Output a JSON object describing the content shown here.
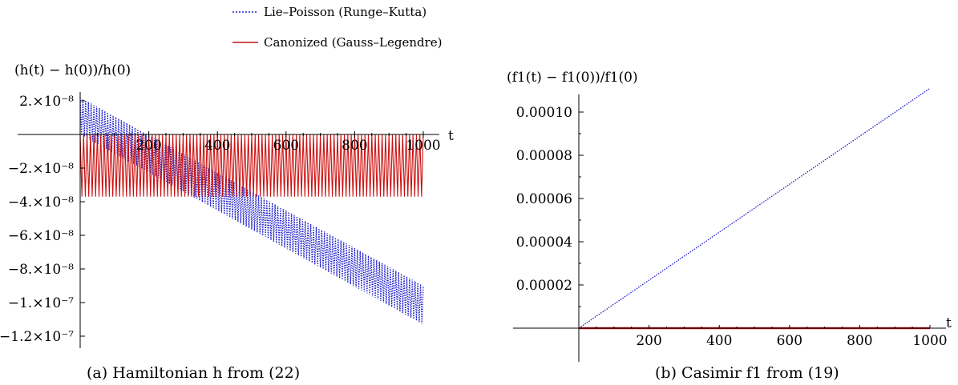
{
  "legend": [
    {
      "label": "Lie–Poisson (Runge–Kutta)",
      "color": "#1f1fcc",
      "style": "dotted"
    },
    {
      "label": "Canonized (Gauss–Legendre)",
      "color": "#cc1111",
      "style": "solid"
    }
  ],
  "chart_data": [
    {
      "type": "line",
      "caption": "(a) Hamiltonian h from (22)",
      "ylabel": "(h(t) − h(0))/h(0)",
      "xlabel": "t",
      "xlim": [
        0,
        1000
      ],
      "ylim": [
        -1.2e-07,
        2.5e-08
      ],
      "x_ticks": [
        200,
        400,
        600,
        800,
        1000
      ],
      "x_tick_labels": [
        "200",
        "400",
        "600",
        "800",
        "1000"
      ],
      "y_ticks": [
        2e-08,
        -2e-08,
        -4e-08,
        -6e-08,
        -8e-08,
        -1e-07,
        -1.2e-07
      ],
      "y_tick_labels": [
        "2.×10⁻⁸",
        "−2.×10⁻⁸",
        "−4.×10⁻⁸",
        "−6.×10⁻⁸",
        "−8.×10⁻⁸",
        "−1.×10⁻⁷",
        "−1.2×10⁻⁷"
      ],
      "series": [
        {
          "name": "Lie–Poisson (Runge–Kutta)",
          "color": "#1f1fcc",
          "style": "dotted",
          "x": [
            0,
            1000
          ],
          "upper": [
            2.2e-08,
            -9e-08
          ],
          "lower": [
            0.0,
            -1.13e-07
          ],
          "oscillation_period": 8
        },
        {
          "name": "Canonized (Gauss–Legendre)",
          "color": "#cc1111",
          "style": "solid",
          "x": [
            0,
            1000
          ],
          "upper": [
            0.0,
            0.0
          ],
          "lower": [
            -3.7e-08,
            -3.7e-08
          ],
          "oscillation_period": 10
        }
      ]
    },
    {
      "type": "line",
      "caption": "(b) Casimir f1 from (19)",
      "ylabel": "(f1(t) − f1(0))/f1(0)",
      "xlabel": "t",
      "xlim": [
        0,
        1000
      ],
      "ylim": [
        0,
        0.000112
      ],
      "x_ticks": [
        200,
        400,
        600,
        800,
        1000
      ],
      "x_tick_labels": [
        "200",
        "400",
        "600",
        "800",
        "1000"
      ],
      "y_ticks": [
        2e-05,
        4e-05,
        6e-05,
        8e-05,
        0.0001
      ],
      "y_tick_labels": [
        "0.00002",
        "0.00004",
        "0.00006",
        "0.00008",
        "0.00010"
      ],
      "series": [
        {
          "name": "Lie–Poisson (Runge–Kutta)",
          "color": "#1f1fcc",
          "style": "dotted",
          "x": [
            0,
            1000
          ],
          "y": [
            0,
            0.000111
          ]
        },
        {
          "name": "Canonized (Gauss–Legendre)",
          "color": "#cc1111",
          "style": "solid",
          "x": [
            0,
            1000
          ],
          "y": [
            0,
            0
          ]
        }
      ]
    }
  ]
}
